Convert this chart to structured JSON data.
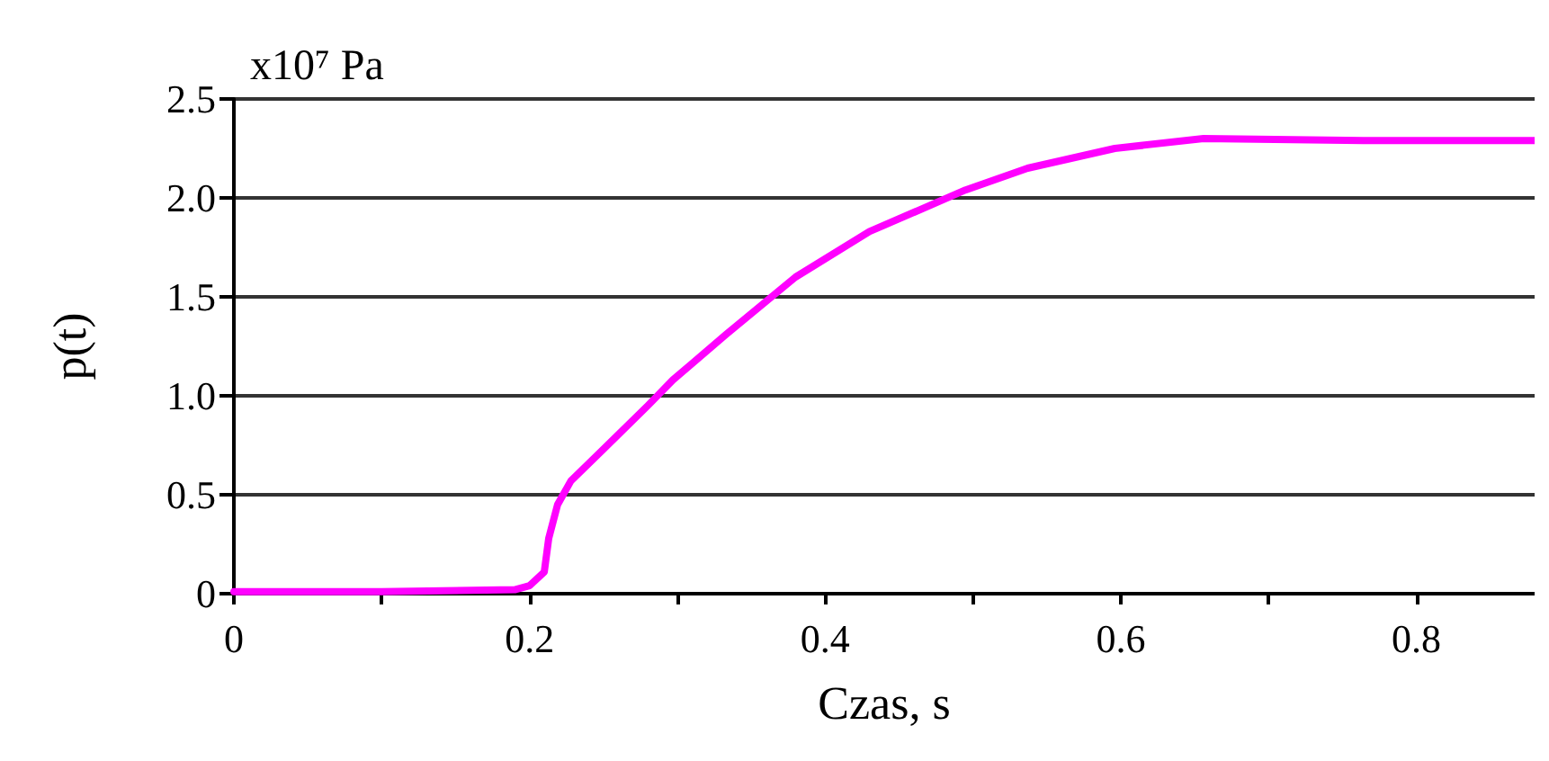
{
  "chart_data": {
    "type": "line",
    "xlabel": "Czas, s",
    "ylabel": "p(t)",
    "annotations": [
      "x10⁷ Pa"
    ],
    "xlim": [
      0,
      0.88
    ],
    "ylim": [
      0,
      2.5
    ],
    "xticks": [
      0,
      {
        "value": 0.1,
        "label": null
      },
      0.2,
      {
        "value": 0.3,
        "label": null
      },
      0.4,
      {
        "value": 0.5,
        "label": null
      },
      0.6,
      {
        "value": 0.7,
        "label": null
      },
      0.8
    ],
    "yticks": [
      0,
      {
        "value": 0.5,
        "label": "0.5"
      },
      {
        "value": 1,
        "label": "1.0"
      },
      {
        "value": 1.5,
        "label": "1.5"
      },
      {
        "value": 2,
        "label": "2.0"
      },
      {
        "value": 2.5,
        "label": "2.5"
      }
    ],
    "grid": "y",
    "marker": "none",
    "line_style": "solid",
    "series": [
      {
        "color": "#ff00ff",
        "x": [
          0,
          0.1,
          0.19,
          0.2,
          0.21,
          0.213,
          0.219,
          0.228,
          0.25,
          0.28,
          0.297,
          0.333,
          0.38,
          0.43,
          0.495,
          0.537,
          0.596,
          0.656,
          0.764,
          0.88
        ],
        "values": [
          0.01,
          0.01,
          0.02,
          0.04,
          0.11,
          0.28,
          0.45,
          0.57,
          0.73,
          0.95,
          1.08,
          1.31,
          1.6,
          1.83,
          2.04,
          2.15,
          2.25,
          2.3,
          2.29,
          2.29
        ]
      }
    ]
  }
}
